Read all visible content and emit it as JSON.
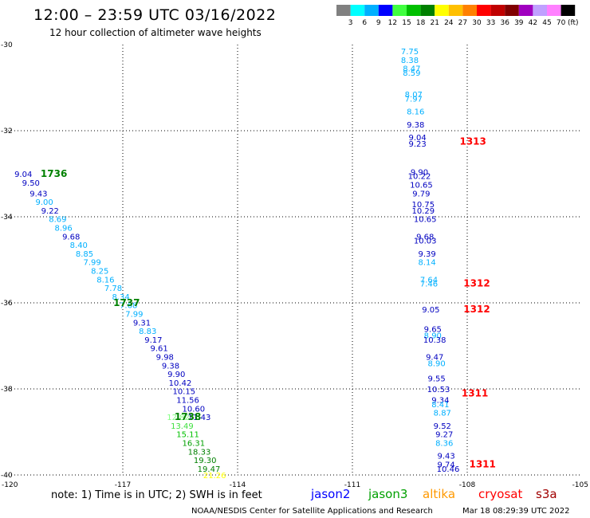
{
  "header": {
    "title": "12:00 – 23:59 UTC 03/16/2022",
    "subtitle": "12 hour collection of altimeter wave heights"
  },
  "legend": {
    "unit": "(ft)",
    "labels": [
      "3",
      "6",
      "9",
      "12",
      "15",
      "18",
      "21",
      "24",
      "27",
      "30",
      "33",
      "36",
      "39",
      "42",
      "45",
      "70"
    ],
    "colors": [
      "#808080",
      "#00ffff",
      "#00b0ff",
      "#0000ff",
      "#40ff40",
      "#00c000",
      "#008000",
      "#ffff00",
      "#ffc000",
      "#ff8000",
      "#ff0000",
      "#c00000",
      "#800000",
      "#a000c0",
      "#c0a0ff",
      "#ff80ff",
      "#000000"
    ]
  },
  "axes": {
    "lon_labels": [
      "-120",
      "-117",
      "-114",
      "-111",
      "-108",
      "-105"
    ],
    "lat_labels": [
      "-30",
      "-32",
      "-34",
      "-36",
      "-38",
      "-40"
    ]
  },
  "note": "note: 1) Time is in UTC; 2) SWH is in feet",
  "satellites": [
    {
      "name": "jason2",
      "color": "#0000ff"
    },
    {
      "name": "jason3",
      "color": "#00a000"
    },
    {
      "name": "altika",
      "color": "#ff9900"
    },
    {
      "name": "cryosat",
      "color": "#ff0000"
    },
    {
      "name": "s3a",
      "color": "#a00000"
    }
  ],
  "footer": {
    "credit": "NOAA/NESDIS Center for Satellite Applications and Research",
    "timestamp": "Mar 18 08:29:39 UTC 2022"
  },
  "map_data": {
    "lon_range": [
      -120,
      -105
    ],
    "lat_range": [
      -40,
      -30
    ],
    "tracks": [
      {
        "times": [
          {
            "text": "1736",
            "lon": -118.8,
            "lat": -33.0,
            "color": "#008000"
          },
          {
            "text": "1737",
            "lon": -116.9,
            "lat": -36.0,
            "color": "#008000"
          },
          {
            "text": "1738",
            "lon": -115.3,
            "lat": -38.65,
            "color": "#008000"
          }
        ],
        "points": [
          {
            "v": "9.04",
            "lon": -119.6,
            "lat": -33.0,
            "c": "#0000c0"
          },
          {
            "v": "9.50",
            "lon": -119.4,
            "lat": -33.2,
            "c": "#0000c0"
          },
          {
            "v": "9.43",
            "lon": -119.2,
            "lat": -33.45,
            "c": "#0000c0"
          },
          {
            "v": "9.00",
            "lon": -119.05,
            "lat": -33.65,
            "c": "#00b0ff"
          },
          {
            "v": "9.22",
            "lon": -118.9,
            "lat": -33.85,
            "c": "#0000c0"
          },
          {
            "v": "8.69",
            "lon": -118.7,
            "lat": -34.05,
            "c": "#00b0ff"
          },
          {
            "v": "8.96",
            "lon": -118.55,
            "lat": -34.25,
            "c": "#00b0ff"
          },
          {
            "v": "9.68",
            "lon": -118.35,
            "lat": -34.45,
            "c": "#0000c0"
          },
          {
            "v": "8.40",
            "lon": -118.15,
            "lat": -34.65,
            "c": "#00b0ff"
          },
          {
            "v": "8.85",
            "lon": -118.0,
            "lat": -34.85,
            "c": "#00b0ff"
          },
          {
            "v": "7.99",
            "lon": -117.8,
            "lat": -35.05,
            "c": "#00b0ff"
          },
          {
            "v": "8.25",
            "lon": -117.6,
            "lat": -35.25,
            "c": "#00b0ff"
          },
          {
            "v": "8.16",
            "lon": -117.45,
            "lat": -35.45,
            "c": "#00b0ff"
          },
          {
            "v": "7.78",
            "lon": -117.25,
            "lat": -35.65,
            "c": "#00b0ff"
          },
          {
            "v": "8.34",
            "lon": -117.05,
            "lat": -35.85,
            "c": "#00b0ff"
          },
          {
            "v": "7.68",
            "lon": -116.85,
            "lat": -36.05,
            "c": "#00b0ff"
          },
          {
            "v": "7.99",
            "lon": -116.7,
            "lat": -36.25,
            "c": "#00b0ff"
          },
          {
            "v": "9.31",
            "lon": -116.5,
            "lat": -36.45,
            "c": "#0000c0"
          },
          {
            "v": "8.83",
            "lon": -116.35,
            "lat": -36.65,
            "c": "#00b0ff"
          },
          {
            "v": "9.17",
            "lon": -116.2,
            "lat": -36.85,
            "c": "#0000c0"
          },
          {
            "v": "9.61",
            "lon": -116.05,
            "lat": -37.05,
            "c": "#0000c0"
          },
          {
            "v": "9.98",
            "lon": -115.9,
            "lat": -37.25,
            "c": "#0000c0"
          },
          {
            "v": "9.38",
            "lon": -115.75,
            "lat": -37.45,
            "c": "#0000c0"
          },
          {
            "v": "9.90",
            "lon": -115.6,
            "lat": -37.65,
            "c": "#0000c0"
          },
          {
            "v": "10.42",
            "lon": -115.5,
            "lat": -37.85,
            "c": "#0000c0"
          },
          {
            "v": "10.15",
            "lon": -115.4,
            "lat": -38.05,
            "c": "#0000c0"
          },
          {
            "v": "11.56",
            "lon": -115.3,
            "lat": -38.25,
            "c": "#0000c0"
          },
          {
            "v": "10.60",
            "lon": -115.15,
            "lat": -38.45,
            "c": "#0000c0"
          },
          {
            "v": "11.43",
            "lon": -115.0,
            "lat": -38.65,
            "c": "#0000c0"
          },
          {
            "v": "12.82",
            "lon": -115.55,
            "lat": -38.65,
            "c": "#80ff80"
          },
          {
            "v": "13.49",
            "lon": -115.45,
            "lat": -38.85,
            "c": "#40e040"
          },
          {
            "v": "15.11",
            "lon": -115.3,
            "lat": -39.05,
            "c": "#00c000"
          },
          {
            "v": "16.31",
            "lon": -115.15,
            "lat": -39.25,
            "c": "#00a000"
          },
          {
            "v": "18.33",
            "lon": -115.0,
            "lat": -39.45,
            "c": "#008000"
          },
          {
            "v": "19.30",
            "lon": -114.85,
            "lat": -39.65,
            "c": "#008000"
          },
          {
            "v": "19.47",
            "lon": -114.75,
            "lat": -39.85,
            "c": "#008000"
          },
          {
            "v": "21.26",
            "lon": -114.6,
            "lat": -40.0,
            "c": "#ffff00"
          }
        ]
      },
      {
        "times": [
          {
            "text": "1313",
            "lon": -107.85,
            "lat": -32.25,
            "color": "#ff0000"
          },
          {
            "text": "1312",
            "lon": -107.75,
            "lat": -35.55,
            "color": "#ff0000"
          },
          {
            "text": "1312",
            "lon": -107.75,
            "lat": -36.15,
            "color": "#ff0000"
          },
          {
            "text": "1311",
            "lon": -107.8,
            "lat": -38.1,
            "color": "#ff0000"
          },
          {
            "text": "1311",
            "lon": -107.6,
            "lat": -39.75,
            "color": "#ff0000"
          }
        ],
        "points": [
          {
            "v": "7.75",
            "lon": -109.5,
            "lat": -30.15,
            "c": "#00b0ff"
          },
          {
            "v": "8.38",
            "lon": -109.5,
            "lat": -30.35,
            "c": "#00b0ff"
          },
          {
            "v": "8.47",
            "lon": -109.45,
            "lat": -30.55,
            "c": "#00b0ff"
          },
          {
            "v": "8.59",
            "lon": -109.45,
            "lat": -30.65,
            "c": "#00b0ff"
          },
          {
            "v": "8.07",
            "lon": -109.4,
            "lat": -31.15,
            "c": "#00b0ff"
          },
          {
            "v": "7.97",
            "lon": -109.4,
            "lat": -31.25,
            "c": "#00b0ff"
          },
          {
            "v": "8.16",
            "lon": -109.35,
            "lat": -31.55,
            "c": "#00b0ff"
          },
          {
            "v": "9.38",
            "lon": -109.35,
            "lat": -31.85,
            "c": "#0000c0"
          },
          {
            "v": "9.04",
            "lon": -109.3,
            "lat": -32.15,
            "c": "#0000c0"
          },
          {
            "v": "9.23",
            "lon": -109.3,
            "lat": -32.3,
            "c": "#0000c0"
          },
          {
            "v": "9.90",
            "lon": -109.25,
            "lat": -32.95,
            "c": "#0000c0"
          },
          {
            "v": "10.22",
            "lon": -109.25,
            "lat": -33.05,
            "c": "#0000c0"
          },
          {
            "v": "10.65",
            "lon": -109.2,
            "lat": -33.25,
            "c": "#0000c0"
          },
          {
            "v": "9.79",
            "lon": -109.2,
            "lat": -33.45,
            "c": "#0000c0"
          },
          {
            "v": "10.75",
            "lon": -109.15,
            "lat": -33.7,
            "c": "#0000c0"
          },
          {
            "v": "10.29",
            "lon": -109.15,
            "lat": -33.85,
            "c": "#0000c0"
          },
          {
            "v": "10.65",
            "lon": -109.1,
            "lat": -34.05,
            "c": "#0000c0"
          },
          {
            "v": "9.68",
            "lon": -109.1,
            "lat": -34.45,
            "c": "#0000c0"
          },
          {
            "v": "10.03",
            "lon": -109.1,
            "lat": -34.55,
            "c": "#0000c0"
          },
          {
            "v": "9.39",
            "lon": -109.05,
            "lat": -34.85,
            "c": "#0000c0"
          },
          {
            "v": "8.14",
            "lon": -109.05,
            "lat": -35.05,
            "c": "#00b0ff"
          },
          {
            "v": "7.64",
            "lon": -109.0,
            "lat": -35.45,
            "c": "#00b0ff"
          },
          {
            "v": "7.46",
            "lon": -109.0,
            "lat": -35.55,
            "c": "#00b0ff"
          },
          {
            "v": "9.05",
            "lon": -108.95,
            "lat": -36.15,
            "c": "#0000c0"
          },
          {
            "v": "9.65",
            "lon": -108.9,
            "lat": -36.6,
            "c": "#0000c0"
          },
          {
            "v": "8.90",
            "lon": -108.9,
            "lat": -36.75,
            "c": "#00b0ff"
          },
          {
            "v": "10.38",
            "lon": -108.85,
            "lat": -36.85,
            "c": "#0000c0"
          },
          {
            "v": "9.47",
            "lon": -108.85,
            "lat": -37.25,
            "c": "#0000c0"
          },
          {
            "v": "8.90",
            "lon": -108.8,
            "lat": -37.4,
            "c": "#00b0ff"
          },
          {
            "v": "9.55",
            "lon": -108.8,
            "lat": -37.75,
            "c": "#0000c0"
          },
          {
            "v": "10.53",
            "lon": -108.75,
            "lat": -38.0,
            "c": "#0000c0"
          },
          {
            "v": "9.34",
            "lon": -108.7,
            "lat": -38.25,
            "c": "#0000c0"
          },
          {
            "v": "8.41",
            "lon": -108.7,
            "lat": -38.35,
            "c": "#00b0ff"
          },
          {
            "v": "8.87",
            "lon": -108.65,
            "lat": -38.55,
            "c": "#00b0ff"
          },
          {
            "v": "9.52",
            "lon": -108.65,
            "lat": -38.85,
            "c": "#0000c0"
          },
          {
            "v": "9.27",
            "lon": -108.6,
            "lat": -39.05,
            "c": "#0000c0"
          },
          {
            "v": "8.36",
            "lon": -108.6,
            "lat": -39.25,
            "c": "#00b0ff"
          },
          {
            "v": "9.43",
            "lon": -108.55,
            "lat": -39.55,
            "c": "#0000c0"
          },
          {
            "v": "9.74",
            "lon": -108.55,
            "lat": -39.75,
            "c": "#0000c0"
          },
          {
            "v": "10.46",
            "lon": -108.5,
            "lat": -39.85,
            "c": "#0000c0"
          }
        ]
      }
    ]
  }
}
